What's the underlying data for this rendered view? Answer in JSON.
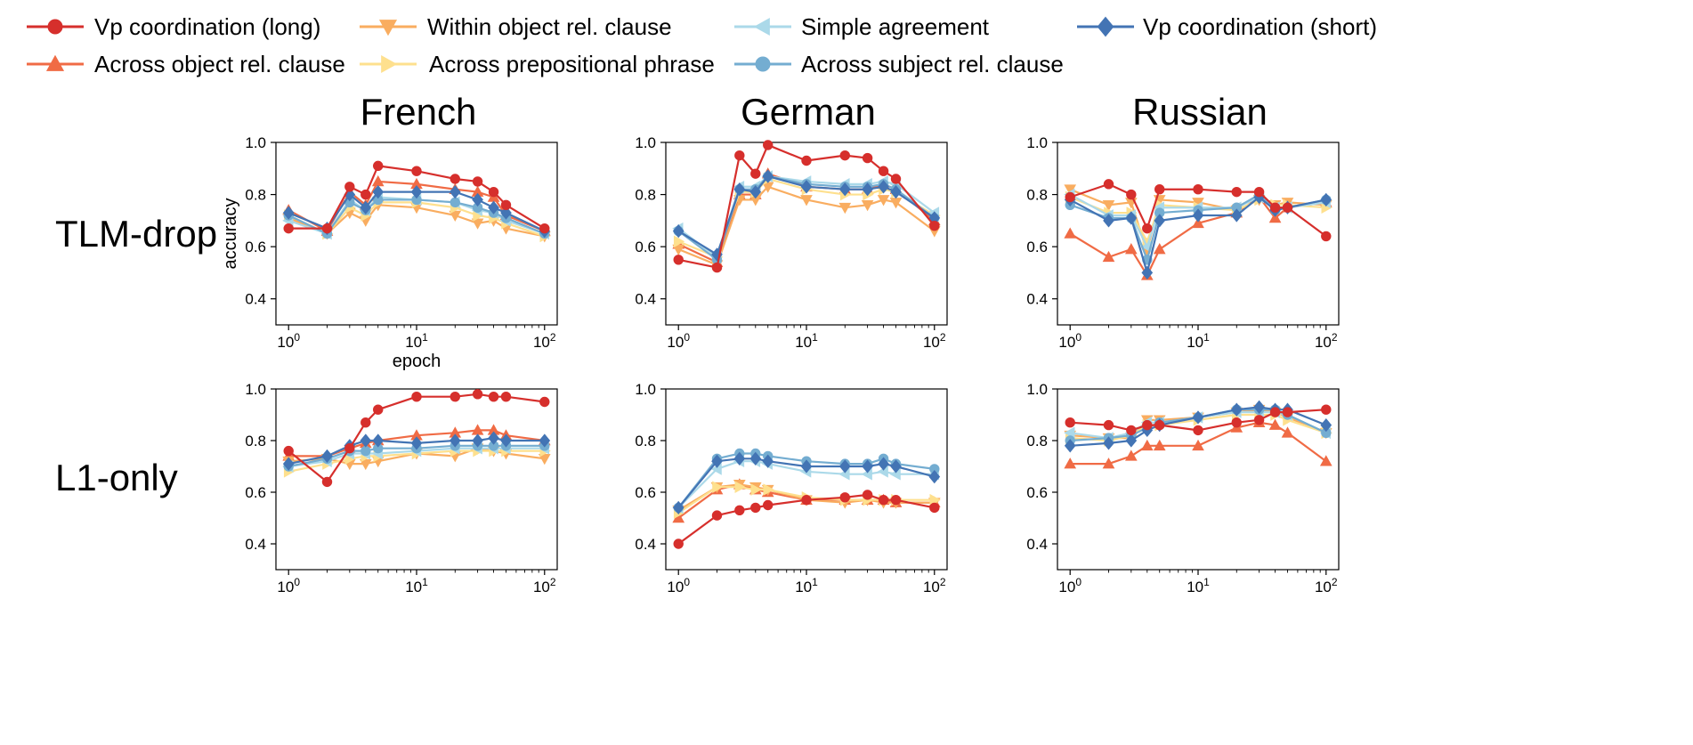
{
  "legend": {
    "placement": "top",
    "entries": [
      {
        "key": "vp_long",
        "label": "Vp coordination (long)",
        "color": "#d62f2c",
        "marker": "circle"
      },
      {
        "key": "within_obj",
        "label": "Within object rel. clause",
        "color": "#f9ad60",
        "marker": "triangle-down"
      },
      {
        "key": "simple",
        "label": "Simple agreement",
        "color": "#abd9e9",
        "marker": "triangle-left"
      },
      {
        "key": "vp_short",
        "label": "Vp coordination (short)",
        "color": "#4374b4",
        "marker": "diamond"
      },
      {
        "key": "across_obj",
        "label": "Across object rel. clause",
        "color": "#f06b45",
        "marker": "triangle-up"
      },
      {
        "key": "across_pp",
        "label": "Across prepositional phrase",
        "color": "#fee08e",
        "marker": "triangle-right"
      },
      {
        "key": "across_subj",
        "label": "Across subject rel. clause",
        "color": "#74add1",
        "marker": "circle"
      }
    ]
  },
  "columns": [
    "French",
    "German",
    "Russian"
  ],
  "rows": [
    "TLM-drop",
    "L1-only"
  ],
  "axes": {
    "xlabel": "epoch",
    "ylabel": "accuracy",
    "xscale": "log",
    "xlim": [
      1,
      100
    ],
    "ylim": [
      0.3,
      1.0
    ],
    "xticks": [
      1,
      10,
      100
    ],
    "xtick_labels": [
      {
        "base": "10",
        "exp": "0"
      },
      {
        "base": "10",
        "exp": "1"
      },
      {
        "base": "10",
        "exp": "2"
      }
    ],
    "yticks": [
      0.4,
      0.6,
      0.8,
      1.0
    ],
    "ytick_labels": [
      "0.4",
      "0.6",
      "0.8",
      "1.0"
    ],
    "grid": false
  },
  "chart_data": [
    {
      "type": "line",
      "language": "French",
      "model": "TLM-drop",
      "x": [
        1,
        2,
        3,
        4,
        5,
        10,
        20,
        30,
        40,
        50,
        100
      ],
      "series": [
        {
          "key": "across_obj",
          "values": [
            0.74,
            0.66,
            0.81,
            0.76,
            0.85,
            0.84,
            0.82,
            0.81,
            0.79,
            0.72,
            0.66
          ]
        },
        {
          "key": "within_obj",
          "values": [
            0.71,
            0.65,
            0.73,
            0.7,
            0.76,
            0.75,
            0.72,
            0.69,
            0.7,
            0.67,
            0.64
          ]
        },
        {
          "key": "across_pp",
          "values": [
            0.72,
            0.65,
            0.75,
            0.72,
            0.77,
            0.77,
            0.75,
            0.72,
            0.71,
            0.69,
            0.64
          ]
        },
        {
          "key": "simple",
          "values": [
            0.7,
            0.65,
            0.78,
            0.74,
            0.79,
            0.78,
            0.77,
            0.74,
            0.73,
            0.7,
            0.65
          ]
        },
        {
          "key": "across_subj",
          "values": [
            0.72,
            0.65,
            0.77,
            0.74,
            0.78,
            0.78,
            0.77,
            0.75,
            0.73,
            0.71,
            0.65
          ]
        },
        {
          "key": "vp_short",
          "values": [
            0.73,
            0.67,
            0.8,
            0.75,
            0.81,
            0.81,
            0.81,
            0.78,
            0.75,
            0.73,
            0.66
          ]
        },
        {
          "key": "vp_long",
          "values": [
            0.67,
            0.67,
            0.83,
            0.8,
            0.91,
            0.89,
            0.86,
            0.85,
            0.81,
            0.76,
            0.67
          ]
        }
      ]
    },
    {
      "type": "line",
      "language": "German",
      "model": "TLM-drop",
      "x": [
        1,
        2,
        3,
        4,
        5,
        10,
        20,
        30,
        40,
        50,
        100
      ],
      "series": [
        {
          "key": "across_obj",
          "values": [
            0.61,
            0.54,
            0.8,
            0.8,
            0.88,
            0.83,
            0.82,
            0.82,
            0.84,
            0.82,
            0.7
          ]
        },
        {
          "key": "within_obj",
          "values": [
            0.59,
            0.53,
            0.78,
            0.78,
            0.83,
            0.78,
            0.75,
            0.76,
            0.78,
            0.77,
            0.66
          ]
        },
        {
          "key": "across_pp",
          "values": [
            0.62,
            0.56,
            0.81,
            0.81,
            0.86,
            0.82,
            0.8,
            0.8,
            0.82,
            0.81,
            0.72
          ]
        },
        {
          "key": "simple",
          "values": [
            0.67,
            0.56,
            0.83,
            0.83,
            0.87,
            0.85,
            0.84,
            0.84,
            0.85,
            0.84,
            0.73
          ]
        },
        {
          "key": "across_subj",
          "values": [
            0.66,
            0.55,
            0.82,
            0.82,
            0.87,
            0.84,
            0.83,
            0.83,
            0.84,
            0.82,
            0.71
          ]
        },
        {
          "key": "vp_short",
          "values": [
            0.66,
            0.57,
            0.82,
            0.81,
            0.87,
            0.83,
            0.82,
            0.82,
            0.83,
            0.81,
            0.71
          ]
        },
        {
          "key": "vp_long",
          "values": [
            0.55,
            0.52,
            0.95,
            0.88,
            0.99,
            0.93,
            0.95,
            0.94,
            0.89,
            0.86,
            0.68
          ]
        }
      ]
    },
    {
      "type": "line",
      "language": "Russian",
      "model": "TLM-drop",
      "x": [
        1,
        2,
        3,
        4,
        5,
        10,
        20,
        30,
        40,
        50,
        100
      ],
      "series": [
        {
          "key": "across_obj",
          "values": [
            0.65,
            0.56,
            0.59,
            0.49,
            0.59,
            0.69,
            0.73,
            0.79,
            0.71,
            0.75,
            0.77
          ]
        },
        {
          "key": "within_obj",
          "values": [
            0.82,
            0.76,
            0.77,
            0.58,
            0.78,
            0.77,
            0.74,
            0.78,
            0.76,
            0.77,
            0.76
          ]
        },
        {
          "key": "across_pp",
          "values": [
            0.79,
            0.73,
            0.73,
            0.62,
            0.76,
            0.75,
            0.74,
            0.78,
            0.76,
            0.76,
            0.75
          ]
        },
        {
          "key": "simple",
          "values": [
            0.8,
            0.72,
            0.72,
            0.6,
            0.75,
            0.75,
            0.75,
            0.79,
            0.75,
            0.75,
            0.77
          ]
        },
        {
          "key": "across_subj",
          "values": [
            0.76,
            0.71,
            0.71,
            0.55,
            0.73,
            0.74,
            0.75,
            0.8,
            0.74,
            0.75,
            0.78
          ]
        },
        {
          "key": "vp_short",
          "values": [
            0.78,
            0.7,
            0.71,
            0.5,
            0.7,
            0.72,
            0.72,
            0.79,
            0.74,
            0.75,
            0.78
          ]
        },
        {
          "key": "vp_long",
          "values": [
            0.79,
            0.84,
            0.8,
            0.67,
            0.82,
            0.82,
            0.81,
            0.81,
            0.75,
            0.75,
            0.64
          ]
        }
      ]
    },
    {
      "type": "line",
      "language": "French",
      "model": "L1-only",
      "x": [
        1,
        2,
        3,
        4,
        5,
        10,
        20,
        30,
        40,
        50,
        100
      ],
      "series": [
        {
          "key": "across_obj",
          "values": [
            0.74,
            0.74,
            0.77,
            0.79,
            0.8,
            0.82,
            0.83,
            0.84,
            0.84,
            0.82,
            0.8
          ]
        },
        {
          "key": "within_obj",
          "values": [
            0.72,
            0.73,
            0.71,
            0.71,
            0.72,
            0.75,
            0.74,
            0.77,
            0.76,
            0.75,
            0.73
          ]
        },
        {
          "key": "across_pp",
          "values": [
            0.68,
            0.71,
            0.73,
            0.74,
            0.74,
            0.75,
            0.76,
            0.76,
            0.76,
            0.76,
            0.76
          ]
        },
        {
          "key": "simple",
          "values": [
            0.7,
            0.72,
            0.75,
            0.75,
            0.75,
            0.76,
            0.77,
            0.77,
            0.77,
            0.77,
            0.77
          ]
        },
        {
          "key": "across_subj",
          "values": [
            0.7,
            0.73,
            0.76,
            0.76,
            0.77,
            0.77,
            0.78,
            0.78,
            0.78,
            0.78,
            0.78
          ]
        },
        {
          "key": "vp_short",
          "values": [
            0.71,
            0.74,
            0.78,
            0.8,
            0.8,
            0.79,
            0.8,
            0.8,
            0.81,
            0.8,
            0.8
          ]
        },
        {
          "key": "vp_long",
          "values": [
            0.76,
            0.64,
            0.77,
            0.87,
            0.92,
            0.97,
            0.97,
            0.98,
            0.97,
            0.97,
            0.95
          ]
        }
      ]
    },
    {
      "type": "line",
      "language": "German",
      "model": "L1-only",
      "x": [
        1,
        2,
        3,
        4,
        5,
        10,
        20,
        30,
        40,
        50,
        100
      ],
      "series": [
        {
          "key": "across_obj",
          "values": [
            0.5,
            0.61,
            0.63,
            0.61,
            0.6,
            0.57,
            0.57,
            0.57,
            0.57,
            0.56,
            0.56
          ]
        },
        {
          "key": "within_obj",
          "values": [
            0.53,
            0.62,
            0.63,
            0.62,
            0.61,
            0.57,
            0.56,
            0.57,
            0.56,
            0.56,
            0.56
          ]
        },
        {
          "key": "across_pp",
          "values": [
            0.52,
            0.62,
            0.62,
            0.61,
            0.61,
            0.58,
            0.57,
            0.57,
            0.57,
            0.57,
            0.57
          ]
        },
        {
          "key": "simple",
          "values": [
            0.54,
            0.69,
            0.72,
            0.72,
            0.71,
            0.68,
            0.67,
            0.67,
            0.68,
            0.67,
            0.67
          ]
        },
        {
          "key": "across_subj",
          "values": [
            0.54,
            0.73,
            0.75,
            0.75,
            0.74,
            0.72,
            0.71,
            0.71,
            0.73,
            0.71,
            0.69
          ]
        },
        {
          "key": "vp_short",
          "values": [
            0.54,
            0.72,
            0.73,
            0.73,
            0.72,
            0.7,
            0.7,
            0.7,
            0.71,
            0.7,
            0.66
          ]
        },
        {
          "key": "vp_long",
          "values": [
            0.4,
            0.51,
            0.53,
            0.54,
            0.55,
            0.57,
            0.58,
            0.59,
            0.57,
            0.57,
            0.54
          ]
        }
      ]
    },
    {
      "type": "line",
      "language": "Russian",
      "model": "L1-only",
      "x": [
        1,
        2,
        3,
        4,
        5,
        10,
        20,
        30,
        40,
        50,
        100
      ],
      "series": [
        {
          "key": "across_obj",
          "values": [
            0.71,
            0.71,
            0.74,
            0.78,
            0.78,
            0.78,
            0.85,
            0.87,
            0.86,
            0.83,
            0.72
          ]
        },
        {
          "key": "within_obj",
          "values": [
            0.82,
            0.81,
            0.81,
            0.88,
            0.88,
            0.89,
            0.91,
            0.92,
            0.91,
            0.89,
            0.83
          ]
        },
        {
          "key": "across_pp",
          "values": [
            0.81,
            0.8,
            0.82,
            0.86,
            0.86,
            0.88,
            0.9,
            0.9,
            0.9,
            0.88,
            0.83
          ]
        },
        {
          "key": "simple",
          "values": [
            0.83,
            0.81,
            0.83,
            0.87,
            0.87,
            0.89,
            0.91,
            0.91,
            0.91,
            0.9,
            0.83
          ]
        },
        {
          "key": "across_subj",
          "values": [
            0.8,
            0.81,
            0.82,
            0.85,
            0.87,
            0.89,
            0.92,
            0.92,
            0.92,
            0.9,
            0.83
          ]
        },
        {
          "key": "vp_short",
          "values": [
            0.78,
            0.79,
            0.8,
            0.84,
            0.86,
            0.89,
            0.92,
            0.93,
            0.92,
            0.92,
            0.86
          ]
        },
        {
          "key": "vp_long",
          "values": [
            0.87,
            0.86,
            0.84,
            0.86,
            0.86,
            0.84,
            0.87,
            0.88,
            0.91,
            0.91,
            0.92
          ]
        }
      ]
    }
  ]
}
